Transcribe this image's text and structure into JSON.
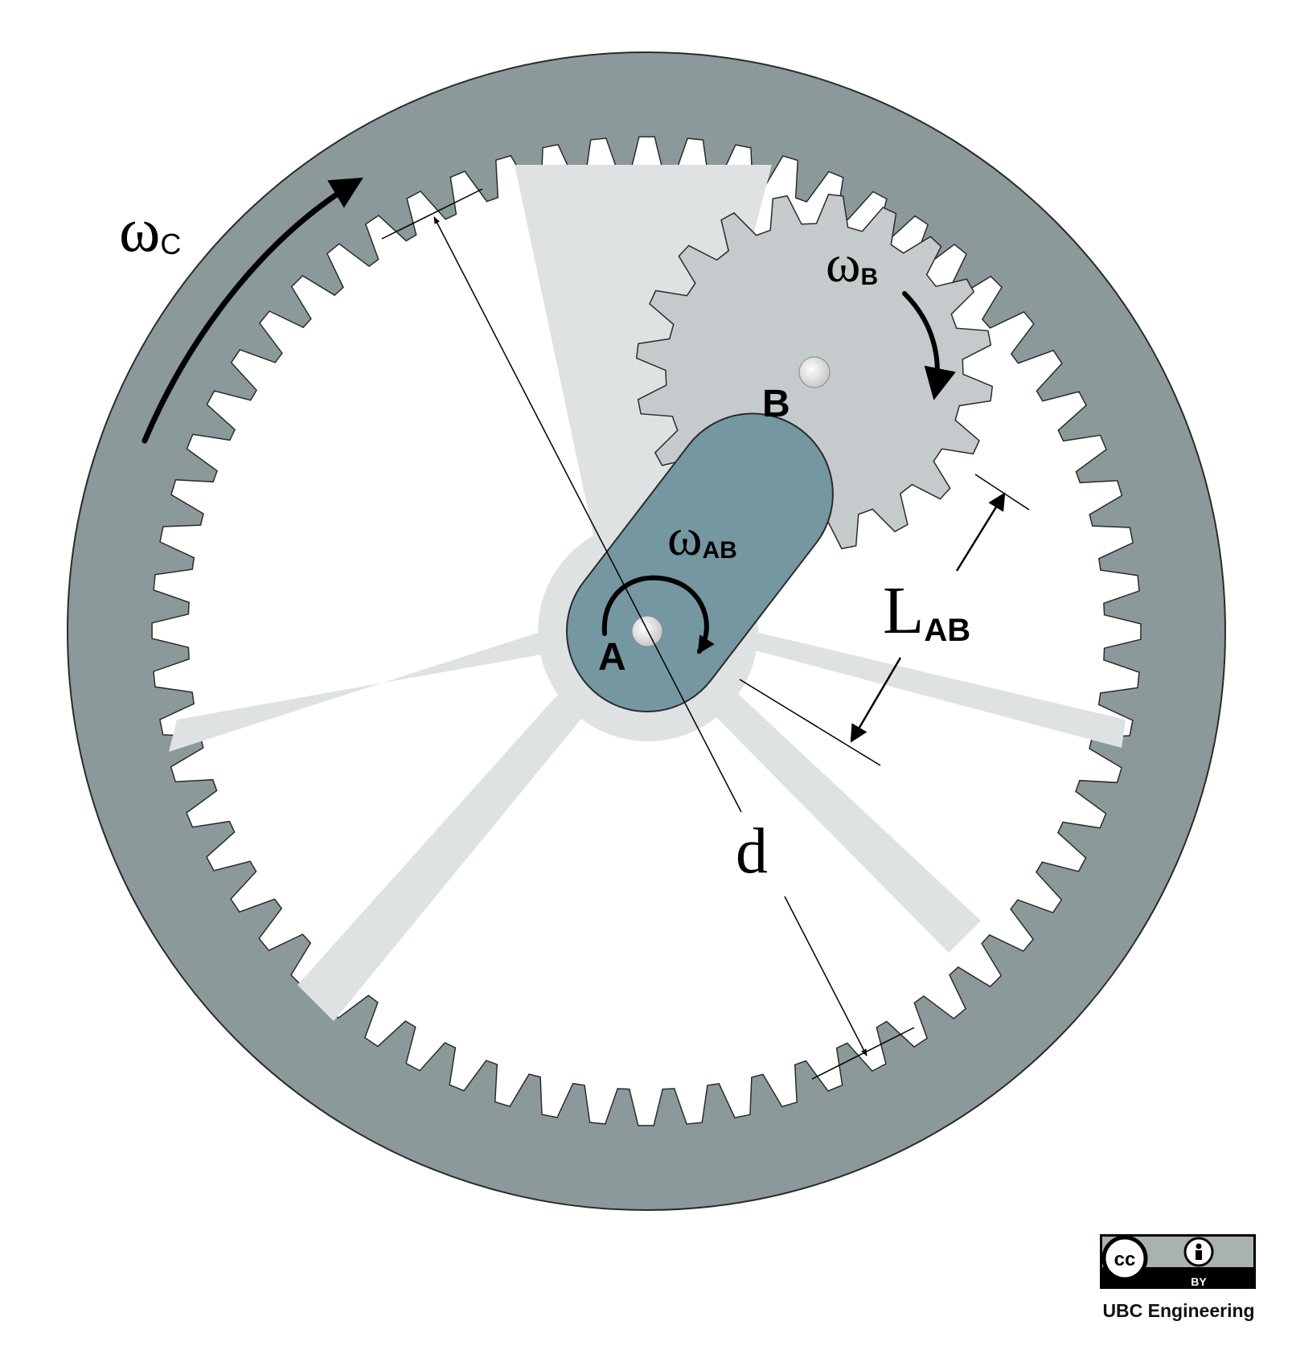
{
  "labels": {
    "omega_c": {
      "main": "ω",
      "sub": "C"
    },
    "omega_b": {
      "main": "ω",
      "sub": "B"
    },
    "omega_ab": {
      "main": "ω",
      "sub": "AB"
    },
    "point_a": "A",
    "point_b": "B",
    "length_ab": {
      "main": "L",
      "sub": "AB"
    },
    "diameter": "d"
  },
  "license": {
    "badge_text": "BY",
    "credit": "UBC Engineering"
  },
  "colors": {
    "ring_gear": "#8c999b",
    "carrier_spokes": "#dfe2e3",
    "planet_gear": "#c5cacc",
    "arm": "#7497a2",
    "outline": "#2b2b2b",
    "pin": "#eeeeee"
  },
  "gears": {
    "ring_teeth": 64,
    "planet_teeth": 20
  }
}
